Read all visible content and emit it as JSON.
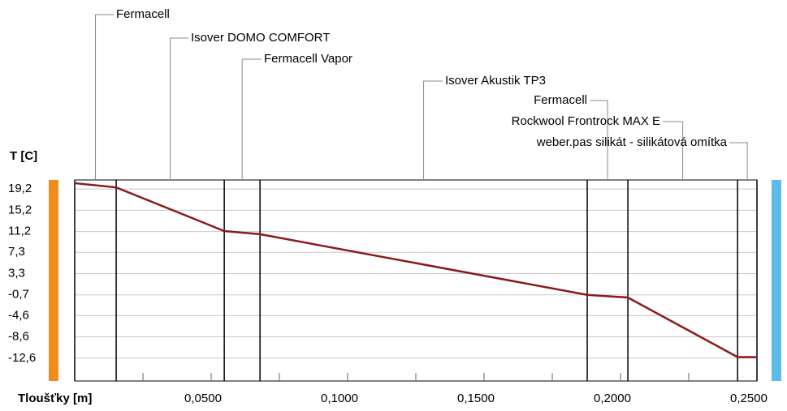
{
  "chart_data": {
    "type": "line",
    "y_label": "T [C]",
    "x_label": "Tloušťky [m]",
    "xlim": [
      0,
      0.25
    ],
    "ylim": [
      -16.9,
      20.9
    ],
    "xticks": [
      {
        "value": 0.05,
        "label": "0,0500"
      },
      {
        "value": 0.1,
        "label": "0,1000"
      },
      {
        "value": 0.15,
        "label": "0,1500"
      },
      {
        "value": 0.2,
        "label": "0,2000"
      },
      {
        "value": 0.25,
        "label": "0,2500"
      }
    ],
    "minor_xticks": [
      0.025,
      0.075,
      0.125,
      0.175,
      0.225
    ],
    "yticks": [
      {
        "value": 19.2,
        "label": "19,2"
      },
      {
        "value": 15.2,
        "label": "15,2"
      },
      {
        "value": 11.2,
        "label": "11,2"
      },
      {
        "value": 7.3,
        "label": "7,3"
      },
      {
        "value": 3.3,
        "label": "3,3"
      },
      {
        "value": -0.7,
        "label": "-0,7"
      },
      {
        "value": -4.6,
        "label": "-4,6"
      },
      {
        "value": -8.6,
        "label": "-8,6"
      },
      {
        "value": -12.6,
        "label": "-12,6"
      }
    ],
    "grid": true,
    "layers": [
      "Fermacell",
      "Isover DOMO COMFORT",
      "Fermacell Vapor",
      "Isover Akustik TP3",
      "Fermacell",
      "Rockwool Frontrock MAX E",
      "weber.pas silikát - silikátová omítka"
    ],
    "layer_boundaries": [
      0,
      0.0152,
      0.0548,
      0.0679,
      0.1878,
      0.2027,
      0.2429,
      0.25
    ],
    "x": [
      0,
      0.0152,
      0.0548,
      0.0679,
      0.1878,
      0.2027,
      0.2429,
      0.25
    ],
    "series": [
      {
        "color": "#8b1a1a",
        "values": [
          20.3,
          19.5,
          11.3,
          10.7,
          -0.7,
          -1.2,
          -12.4,
          -12.4
        ]
      }
    ],
    "inside_color": "#f08c1e",
    "outside_color": "#5bbce8"
  }
}
